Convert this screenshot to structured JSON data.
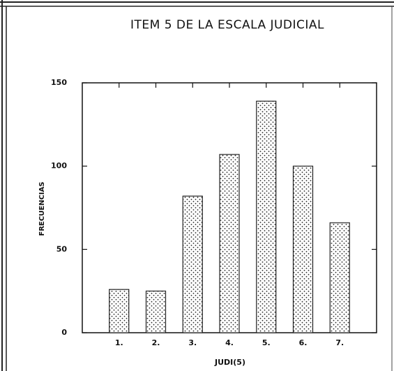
{
  "chart_data": {
    "type": "bar",
    "title": "ITEM 5 DE LA ESCALA JUDICIAL",
    "x_label": "JUDI(5)",
    "y_label": "FRECUENCIAS",
    "categories": [
      "1.",
      "2.",
      "3.",
      "4.",
      "5.",
      "6.",
      "7."
    ],
    "values": [
      26,
      25,
      82,
      107,
      139,
      100,
      66
    ],
    "color": "#222222",
    "ylim": [
      0,
      150
    ],
    "yticks": [
      0,
      50,
      100,
      150
    ],
    "grid": false
  }
}
